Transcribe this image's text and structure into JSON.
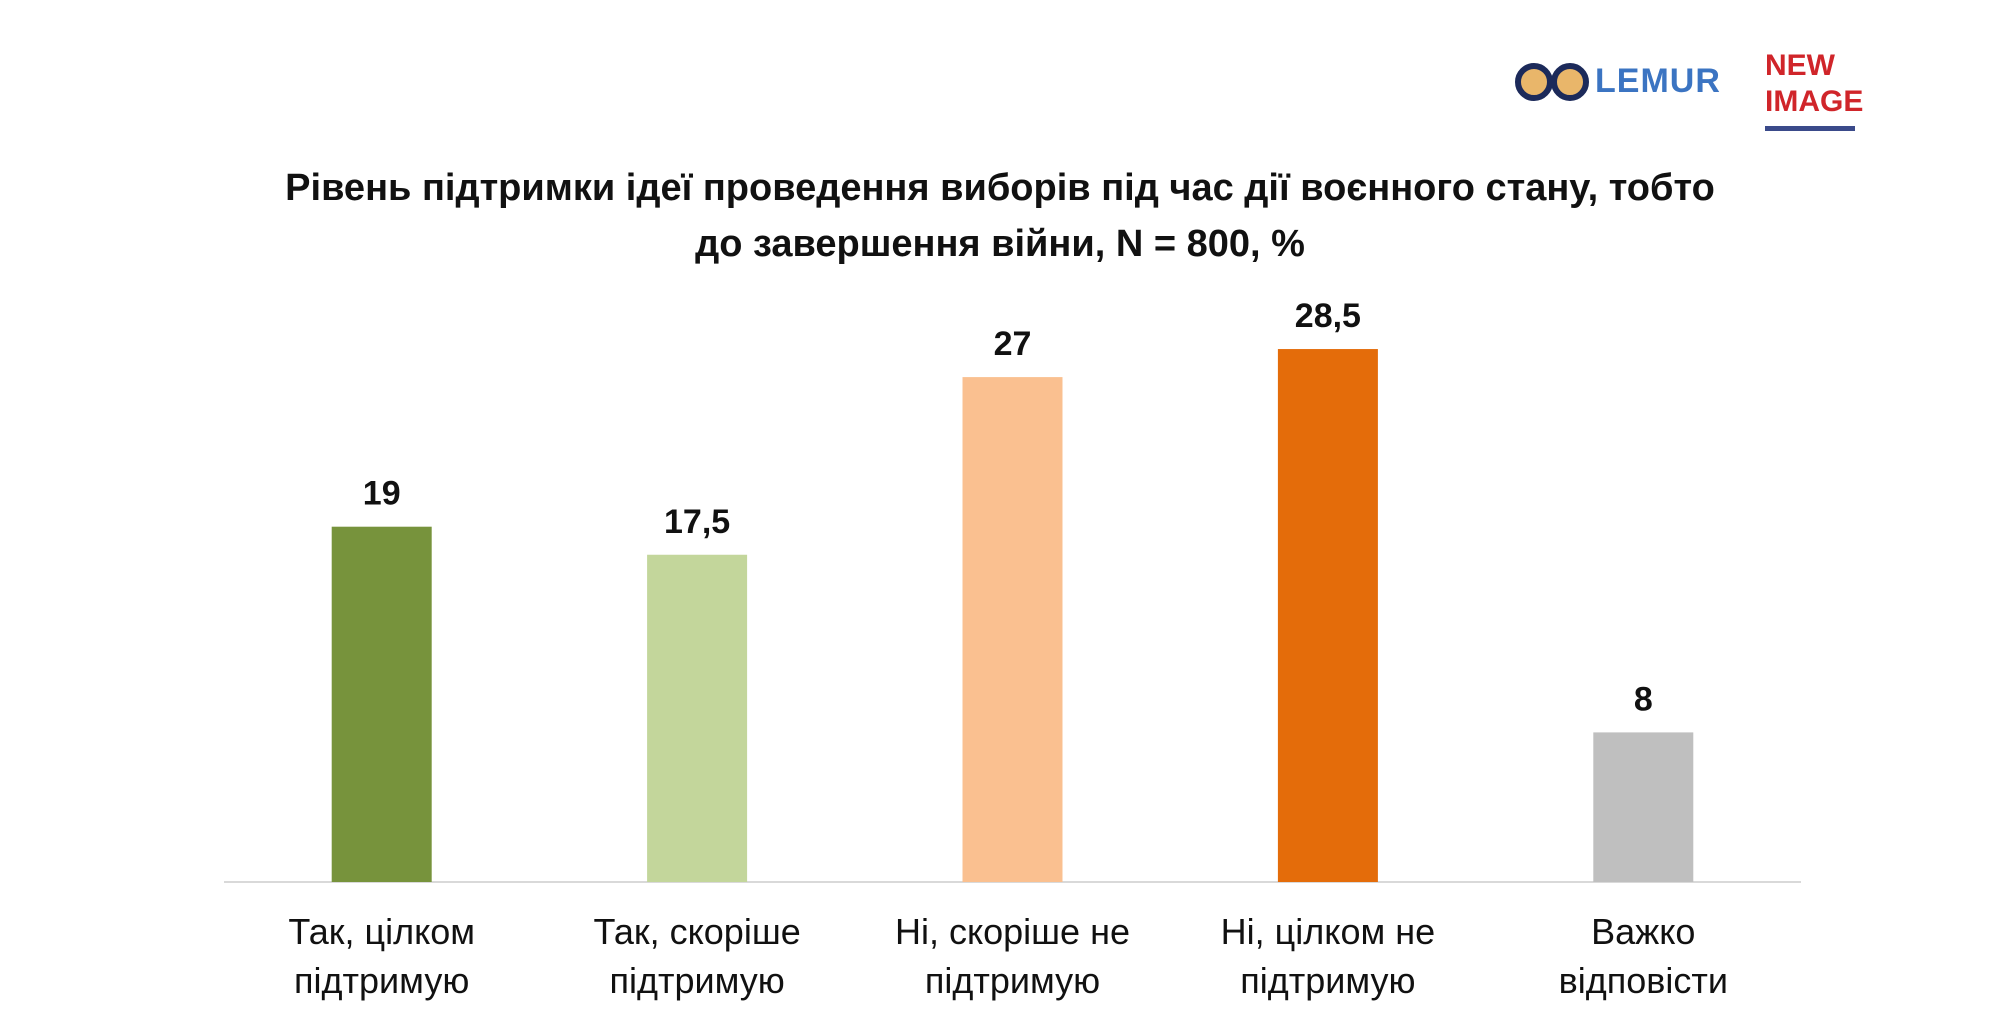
{
  "logos": {
    "lemur": "LEMUR",
    "new_image": "NEW IMAGE"
  },
  "chart_data": {
    "type": "bar",
    "title": "Рівень підтримки ідеї проведення виборів під час дії воєнного стану, тобто до завершення війни, N = 800, %",
    "title_lines": [
      "Рівень підтримки ідеї проведення виборів під час дії воєнного стану, тобто",
      "до завершення війни, N = 800, %"
    ],
    "categories": [
      "Так, цілком підтримую",
      "Так, скоріше підтримую",
      "Ні, скоріше не підтримую",
      "Ні, цілком не підтримую",
      "Важко відповісти"
    ],
    "category_lines": [
      [
        "Так, цілком",
        "підтримую"
      ],
      [
        "Так, скоріше",
        "підтримую"
      ],
      [
        "Ні, скоріше не",
        "підтримую"
      ],
      [
        "Ні, цілком не",
        "підтримую"
      ],
      [
        "Важко",
        "відповісти"
      ]
    ],
    "values": [
      19,
      17.5,
      27,
      28.5,
      8
    ],
    "value_labels": [
      "19",
      "17,5",
      "27",
      "28,5",
      "8"
    ],
    "colors": [
      "#77933c",
      "#c3d69b",
      "#fac090",
      "#e46c0a",
      "#bfbfbf"
    ],
    "ylim": [
      0,
      30
    ],
    "grid": false,
    "legend": "none"
  }
}
